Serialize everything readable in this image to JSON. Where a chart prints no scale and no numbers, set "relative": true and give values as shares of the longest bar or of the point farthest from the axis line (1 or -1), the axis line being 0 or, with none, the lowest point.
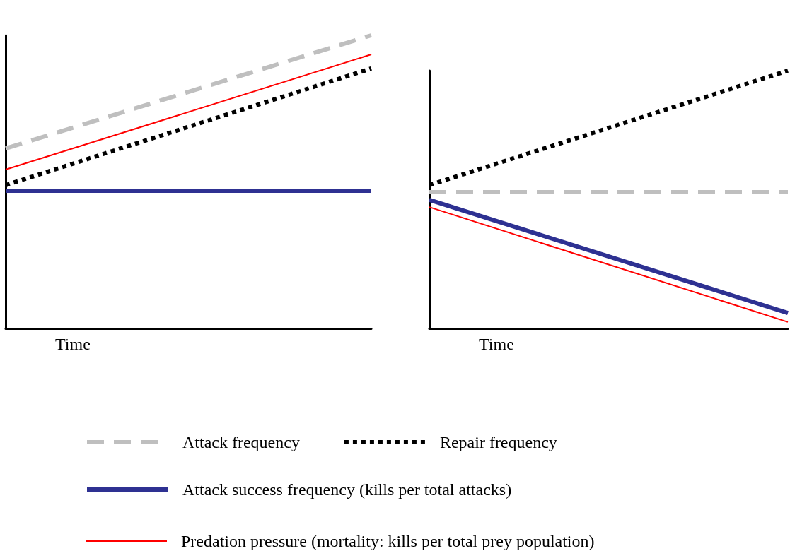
{
  "chart_data": [
    {
      "type": "line",
      "relative": true,
      "categories": [
        null,
        null
      ],
      "xlabel": "Time",
      "legend": "bottom",
      "series": [
        {
          "name": "Attack frequency",
          "color": "#bfbfbf",
          "line_style": "dashed",
          "values": [
            0.614,
            1
          ]
        },
        {
          "name": "Repair frequency",
          "color": "#000000",
          "line_style": "dotted",
          "values": [
            0.489,
            0.887
          ]
        },
        {
          "name": "Attack success frequency (kills per total attacks)",
          "color": "#2e3192",
          "line_style": "solid",
          "values": [
            0.47,
            0.47
          ]
        },
        {
          "name": "Predation pressure (mortality: kills per total prey population)",
          "color": "#ff0000",
          "line_style": "solid",
          "values": [
            0.542,
            0.935
          ]
        }
      ]
    },
    {
      "type": "line",
      "relative": true,
      "categories": [
        null,
        null
      ],
      "xlabel": "Time",
      "series": [
        {
          "color": "#bfbfbf",
          "line_style": "dashed",
          "values": [
            0.529,
            0.529
          ]
        },
        {
          "color": "#000000",
          "line_style": "dotted",
          "values": [
            0.556,
            1
          ]
        },
        {
          "color": "#2e3192",
          "line_style": "solid",
          "values": [
            0.499,
            0.06
          ]
        },
        {
          "color": "#ff0000",
          "line_style": "solid",
          "values": [
            0.471,
            0.025
          ]
        }
      ]
    }
  ]
}
